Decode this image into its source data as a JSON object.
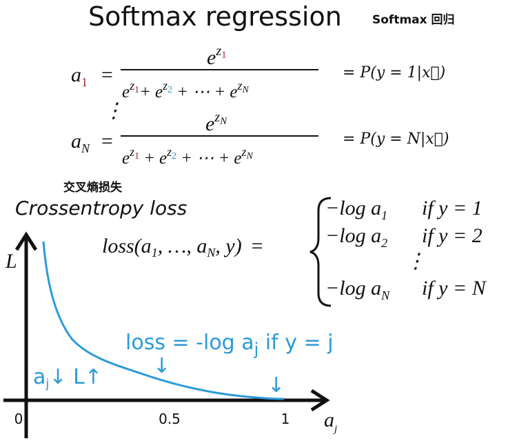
{
  "title": "Softmax regression",
  "title_translation": "Softmax 回归",
  "equations": [
    {
      "lhs": "a",
      "lhs_sub": "1",
      "eq": "=",
      "num": "e",
      "num_sup": "z",
      "num_sup_sub": "1",
      "den_terms": [
        {
          "base": "e",
          "sup": "z",
          "sub": "1"
        },
        {
          "base": "e",
          "sup": "z",
          "sub": "2"
        },
        {
          "base": "e",
          "sup": "z",
          "sub": "N"
        }
      ],
      "den_ops": [
        "+",
        "+ ⋯ +"
      ],
      "rhs": "= P(y = 1|x⃗)"
    },
    {
      "lhs": "a",
      "lhs_sub": "N",
      "eq": "=",
      "num": "e",
      "num_sup": "z",
      "num_sup_sub": "N",
      "den_terms": [
        {
          "base": "e",
          "sup": "z",
          "sub": "1"
        },
        {
          "base": "e",
          "sup": "z",
          "sub": "2"
        },
        {
          "base": "e",
          "sup": "z",
          "sub": "N"
        }
      ],
      "den_ops": [
        "+",
        "+ ⋯ +"
      ],
      "rhs": "= P(y = N|x⃗)"
    }
  ],
  "vdots": "⋮",
  "section_translation": "交叉熵损失",
  "section_title": "Crossentropy loss",
  "loss_lhs": {
    "start": "loss(a",
    "sub1": "1",
    "middle": ", …, a",
    "sub2": "N",
    "end": ", y)",
    "eq": "="
  },
  "cases": [
    {
      "expr": "−log a",
      "sub": "1",
      "cond": "if y = 1"
    },
    {
      "expr": "−log a",
      "sub": "2",
      "cond": "if y = 2"
    },
    {
      "expr": "−log a",
      "sub": "N",
      "cond": "if y = N"
    }
  ],
  "cases_vdots": "⋮",
  "plot": {
    "y_label": "L",
    "x_label": "a",
    "x_label_sub": "j",
    "x_ticks": [
      "0",
      "0.5",
      "1"
    ],
    "annotation": {
      "start": "loss = -log a",
      "sub": "j",
      "end": " if y = j"
    },
    "note": {
      "start": "a",
      "sub": "j",
      "end": "↓ L↑"
    },
    "arrows": [
      "↓",
      "↓"
    ]
  }
}
